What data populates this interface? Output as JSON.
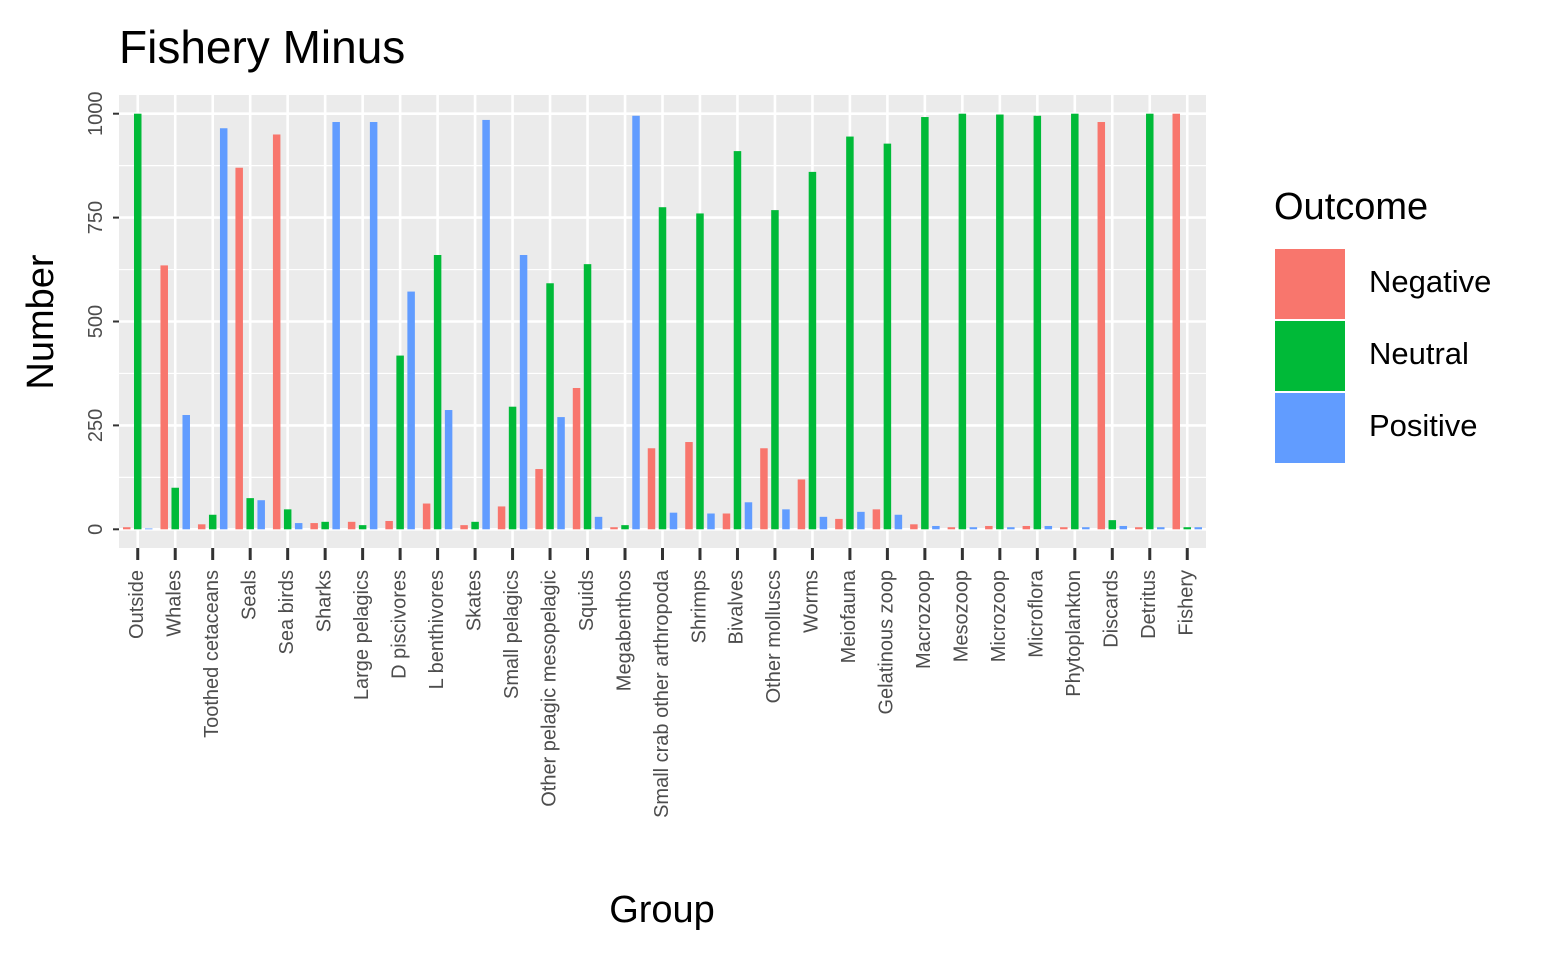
{
  "chart_data": {
    "type": "bar",
    "title": "Fishery Minus",
    "xlabel": "Group",
    "ylabel": "Number",
    "ylim": [
      -45,
      1045
    ],
    "yticks": [
      0,
      250,
      500,
      750,
      1000
    ],
    "yticklabels": [
      "0",
      "250",
      "500",
      "750",
      "1000"
    ],
    "grid": true,
    "legend_position": "right",
    "legend_title": "Outcome",
    "categories": [
      "Outside",
      "Whales",
      "Toothed cetaceans",
      "Seals",
      "Sea birds",
      "Sharks",
      "Large pelagics",
      "D piscivores",
      "L benthivores",
      "Skates",
      "Small pelagics",
      "Other pelagic mesopelagic",
      "Squids",
      "Megabenthos",
      "Small crab other arthropoda",
      "Shrimps",
      "Bivalves",
      "Other molluscs",
      "Worms",
      "Meiofauna",
      "Gelatinous zoop",
      "Macrozoop",
      "Mesozoop",
      "Microzoop",
      "Microflora",
      "Phytoplankton",
      "Discards",
      "Detritus",
      "Fishery"
    ],
    "series": [
      {
        "name": "Negative",
        "color": "#F8766D",
        "values": [
          5,
          635,
          12,
          870,
          950,
          15,
          18,
          20,
          62,
          10,
          55,
          145,
          340,
          5,
          195,
          210,
          38,
          195,
          120,
          25,
          48,
          12,
          5,
          8,
          8,
          5,
          980,
          5,
          1000
        ]
      },
      {
        "name": "Neutral",
        "color": "#00BA38",
        "values": [
          1000,
          100,
          35,
          75,
          48,
          18,
          10,
          418,
          660,
          18,
          295,
          592,
          638,
          10,
          775,
          760,
          910,
          768,
          860,
          945,
          928,
          992,
          1000,
          998,
          995,
          1000,
          22,
          1000,
          5
        ]
      },
      {
        "name": "Positive",
        "color": "#619CFF",
        "values": [
          2,
          275,
          965,
          70,
          15,
          980,
          980,
          572,
          287,
          985,
          660,
          270,
          30,
          995,
          40,
          38,
          65,
          48,
          30,
          42,
          35,
          8,
          5,
          5,
          8,
          5,
          8,
          5,
          5
        ]
      }
    ]
  }
}
